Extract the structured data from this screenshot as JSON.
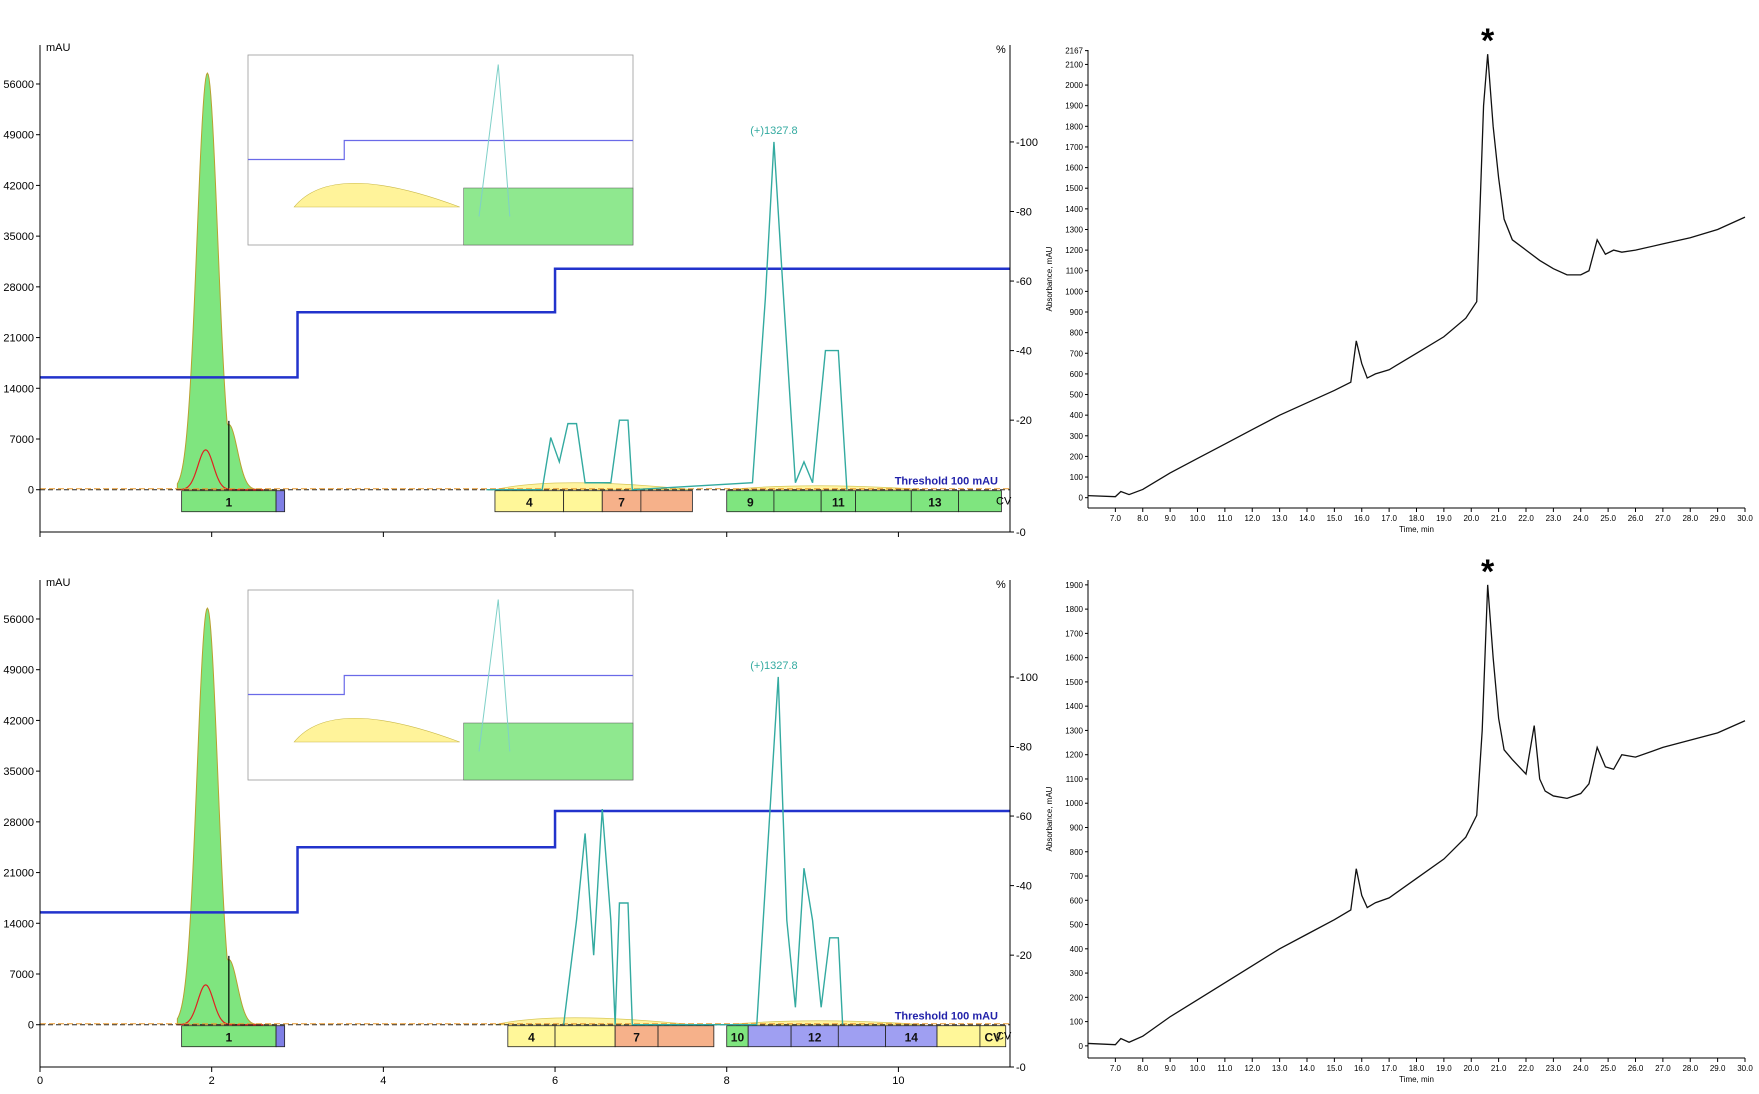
{
  "chromatograms": [
    {
      "left_axis_unit": "mAU",
      "right_axis_unit": "%",
      "mass_label": "(+)1327.8",
      "threshold_label": "Threshold 100 mAU",
      "cv_label": "CV",
      "fractions": [
        {
          "label": "1",
          "start": 1.65,
          "end": 2.75,
          "color": "#7fe57f"
        },
        {
          "label": "",
          "start": 2.75,
          "end": 2.85,
          "color": "#7f7fe5"
        },
        {
          "label": "4",
          "start": 5.3,
          "end": 6.1,
          "color": "#fff799"
        },
        {
          "label": "",
          "start": 6.1,
          "end": 6.55,
          "color": "#fff799"
        },
        {
          "label": "7",
          "start": 6.55,
          "end": 7.0,
          "color": "#f6b18a"
        },
        {
          "label": "",
          "start": 7.0,
          "end": 7.6,
          "color": "#f6b18a"
        },
        {
          "label": "9",
          "start": 8.0,
          "end": 8.55,
          "color": "#7fe57f"
        },
        {
          "label": "",
          "start": 8.55,
          "end": 9.1,
          "color": "#7fe57f"
        },
        {
          "label": "11",
          "start": 9.1,
          "end": 9.5,
          "color": "#7fe57f"
        },
        {
          "label": "",
          "start": 9.5,
          "end": 10.15,
          "color": "#7fe57f"
        },
        {
          "label": "13",
          "start": 10.15,
          "end": 10.7,
          "color": "#7fe57f"
        },
        {
          "label": "",
          "start": 10.7,
          "end": 11.2,
          "color": "#7fe57f"
        }
      ]
    },
    {
      "left_axis_unit": "mAU",
      "right_axis_unit": "%",
      "mass_label": "(+)1327.8",
      "threshold_label": "Threshold 100 mAU",
      "cv_label": "CV",
      "fractions": [
        {
          "label": "1",
          "start": 1.65,
          "end": 2.75,
          "color": "#7fe57f"
        },
        {
          "label": "",
          "start": 2.75,
          "end": 2.85,
          "color": "#7f7fe5"
        },
        {
          "label": "4",
          "start": 5.45,
          "end": 6.0,
          "color": "#fff799"
        },
        {
          "label": "",
          "start": 6.0,
          "end": 6.7,
          "color": "#fff799"
        },
        {
          "label": "7",
          "start": 6.7,
          "end": 7.2,
          "color": "#f6b18a"
        },
        {
          "label": "",
          "start": 7.2,
          "end": 7.85,
          "color": "#f6b18a"
        },
        {
          "label": "10",
          "start": 8.0,
          "end": 8.25,
          "color": "#7fe57f"
        },
        {
          "label": "",
          "start": 8.25,
          "end": 8.75,
          "color": "#9f9ff2"
        },
        {
          "label": "12",
          "start": 8.75,
          "end": 9.3,
          "color": "#9f9ff2"
        },
        {
          "label": "",
          "start": 9.3,
          "end": 9.85,
          "color": "#9f9ff2"
        },
        {
          "label": "14",
          "start": 9.85,
          "end": 10.45,
          "color": "#9f9ff2"
        },
        {
          "label": "",
          "start": 10.45,
          "end": 10.95,
          "color": "#fff799"
        },
        {
          "label": "CV",
          "start": 10.95,
          "end": 11.25,
          "color": "#fff799"
        }
      ]
    }
  ],
  "chart_data": [
    {
      "type": "line",
      "xlim": [
        0,
        11.3
      ],
      "ylim_left": [
        -2800,
        60000
      ],
      "ylim_right": [
        0,
        100
      ],
      "x_ticks": [
        "0",
        "2",
        "4",
        "6",
        "8",
        "10"
      ],
      "y_ticks_left": [
        "0",
        "7000",
        "14000",
        "21000",
        "28000",
        "35000",
        "42000",
        "49000",
        "56000"
      ],
      "y_ticks_right": [
        "0",
        "20",
        "40",
        "60",
        "80",
        "100"
      ],
      "gradient_steps": [
        [
          0,
          15500
        ],
        [
          3.0,
          15500
        ],
        [
          3.0,
          24500
        ],
        [
          6.0,
          24500
        ],
        [
          6.0,
          30500
        ],
        [
          11.3,
          30500
        ]
      ],
      "uv_peak": {
        "center": 1.95,
        "height": 57500,
        "width": 0.12
      },
      "ms_pct": [
        [
          5.2,
          0
        ],
        [
          5.85,
          0
        ],
        [
          5.95,
          15
        ],
        [
          6.05,
          8
        ],
        [
          6.15,
          19
        ],
        [
          6.25,
          19
        ],
        [
          6.35,
          2
        ],
        [
          6.65,
          2
        ],
        [
          6.75,
          20
        ],
        [
          6.85,
          20
        ],
        [
          6.9,
          0
        ],
        [
          8.3,
          2
        ],
        [
          8.45,
          55
        ],
        [
          8.55,
          100
        ],
        [
          8.65,
          60
        ],
        [
          8.8,
          2
        ],
        [
          8.9,
          8
        ],
        [
          9.0,
          2
        ],
        [
          9.15,
          40
        ],
        [
          9.3,
          40
        ],
        [
          9.4,
          0
        ]
      ]
    },
    {
      "type": "line",
      "xlim": [
        0,
        11.3
      ],
      "ylim_left": [
        -2800,
        60000
      ],
      "ylim_right": [
        0,
        100
      ],
      "x_ticks": [
        "0",
        "2",
        "4",
        "6",
        "8",
        "10"
      ],
      "y_ticks_left": [
        "0",
        "7000",
        "14000",
        "21000",
        "28000",
        "35000",
        "42000",
        "49000",
        "56000"
      ],
      "y_ticks_right": [
        "0",
        "20",
        "40",
        "60",
        "80",
        "100"
      ],
      "gradient_steps": [
        [
          0,
          15500
        ],
        [
          3.0,
          15500
        ],
        [
          3.0,
          24500
        ],
        [
          6.0,
          24500
        ],
        [
          6.0,
          29500
        ],
        [
          11.3,
          29500
        ]
      ],
      "uv_peak": {
        "center": 1.95,
        "height": 57500,
        "width": 0.12
      },
      "ms_pct": [
        [
          6.1,
          0
        ],
        [
          6.25,
          30
        ],
        [
          6.35,
          55
        ],
        [
          6.45,
          20
        ],
        [
          6.55,
          62
        ],
        [
          6.65,
          30
        ],
        [
          6.7,
          0
        ],
        [
          6.75,
          35
        ],
        [
          6.85,
          35
        ],
        [
          6.9,
          0
        ],
        [
          8.35,
          0
        ],
        [
          8.5,
          60
        ],
        [
          8.6,
          100
        ],
        [
          8.7,
          30
        ],
        [
          8.8,
          5
        ],
        [
          8.9,
          45
        ],
        [
          9.0,
          30
        ],
        [
          9.1,
          5
        ],
        [
          9.2,
          25
        ],
        [
          9.3,
          25
        ],
        [
          9.35,
          0
        ]
      ]
    },
    {
      "type": "line",
      "xlabel": "Time, min",
      "ylabel": "Absorbance, mAU",
      "annotation": "*",
      "xlim": [
        6.0,
        30.0
      ],
      "ylim": [
        -50,
        2170
      ],
      "x_ticks": [
        "7.0",
        "8.0",
        "9.0",
        "10.0",
        "11.0",
        "12.0",
        "13.0",
        "14.0",
        "15.0",
        "16.0",
        "17.0",
        "18.0",
        "19.0",
        "20.0",
        "21.0",
        "22.0",
        "23.0",
        "24.0",
        "25.0",
        "26.0",
        "27.0",
        "28.0",
        "29.0",
        "30.0"
      ],
      "y_ticks": [
        "0",
        "100",
        "200",
        "300",
        "400",
        "500",
        "600",
        "700",
        "800",
        "900",
        "1000",
        "1100",
        "1200",
        "1300",
        "1400",
        "1500",
        "1600",
        "1700",
        "1800",
        "1900",
        "2000",
        "2100",
        "2167"
      ],
      "x": [
        6.0,
        7.0,
        7.2,
        7.5,
        8.0,
        9.0,
        10.0,
        11.0,
        12.0,
        13.0,
        14.0,
        15.0,
        15.6,
        15.8,
        16.0,
        16.2,
        16.5,
        17.0,
        18.0,
        19.0,
        19.8,
        20.2,
        20.45,
        20.6,
        20.8,
        21.0,
        21.2,
        21.5,
        22.0,
        22.5,
        23.0,
        23.5,
        24.0,
        24.3,
        24.6,
        24.9,
        25.2,
        25.5,
        26.0,
        27.0,
        28.0,
        29.0,
        30.0
      ],
      "y": [
        10,
        5,
        30,
        15,
        40,
        120,
        190,
        260,
        330,
        400,
        460,
        520,
        560,
        760,
        650,
        580,
        600,
        620,
        700,
        780,
        870,
        950,
        1900,
        2150,
        1800,
        1550,
        1350,
        1250,
        1200,
        1150,
        1110,
        1080,
        1080,
        1100,
        1250,
        1180,
        1200,
        1190,
        1200,
        1230,
        1260,
        1300,
        1360
      ]
    },
    {
      "type": "line",
      "xlabel": "Time, min",
      "ylabel": "Absorbance, mAU",
      "annotation": "*",
      "xlim": [
        6.0,
        30.0
      ],
      "ylim": [
        -50,
        1920
      ],
      "x_ticks": [
        "7.0",
        "8.0",
        "9.0",
        "10.0",
        "11.0",
        "12.0",
        "13.0",
        "14.0",
        "15.0",
        "16.0",
        "17.0",
        "18.0",
        "19.0",
        "20.0",
        "21.0",
        "22.0",
        "23.0",
        "24.0",
        "25.0",
        "26.0",
        "27.0",
        "28.0",
        "29.0",
        "30.0"
      ],
      "y_ticks": [
        "0",
        "100",
        "200",
        "300",
        "400",
        "500",
        "600",
        "700",
        "800",
        "900",
        "1000",
        "1100",
        "1200",
        "1300",
        "1400",
        "1500",
        "1600",
        "1700",
        "1800",
        "1900"
      ],
      "x": [
        6.0,
        7.0,
        7.2,
        7.5,
        8.0,
        9.0,
        10.0,
        11.0,
        12.0,
        13.0,
        14.0,
        15.0,
        15.6,
        15.8,
        16.0,
        16.2,
        16.5,
        17.0,
        18.0,
        19.0,
        19.8,
        20.2,
        20.4,
        20.6,
        20.8,
        21.0,
        21.2,
        21.5,
        22.0,
        22.3,
        22.5,
        22.7,
        23.0,
        23.5,
        24.0,
        24.3,
        24.6,
        24.9,
        25.2,
        25.5,
        26.0,
        27.0,
        28.0,
        29.0,
        30.0
      ],
      "y": [
        10,
        5,
        30,
        15,
        40,
        120,
        190,
        260,
        330,
        400,
        460,
        520,
        560,
        730,
        620,
        570,
        590,
        610,
        690,
        770,
        860,
        950,
        1300,
        1900,
        1600,
        1350,
        1220,
        1180,
        1120,
        1320,
        1100,
        1050,
        1030,
        1020,
        1040,
        1080,
        1230,
        1150,
        1140,
        1200,
        1190,
        1230,
        1260,
        1290,
        1340
      ]
    }
  ]
}
